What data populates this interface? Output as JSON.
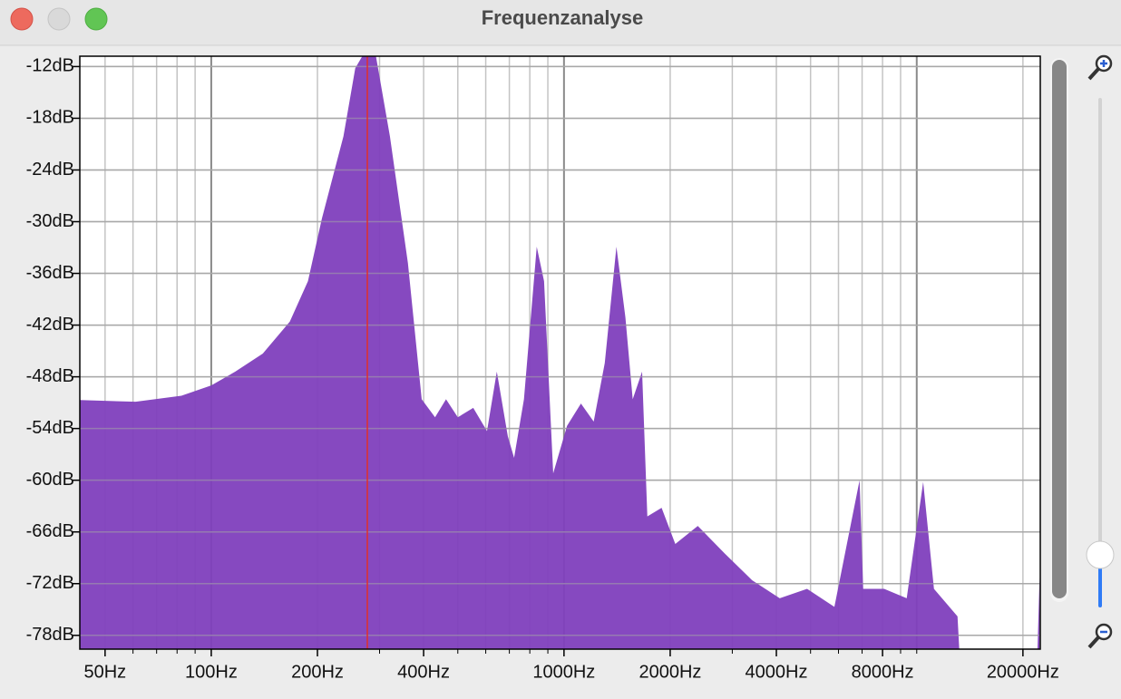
{
  "window": {
    "title": "Frequenzanalyse"
  },
  "chart_data": {
    "type": "area",
    "color": "#7f3fbd",
    "xscale": "log",
    "x": [
      42.4,
      61,
      82.3,
      100,
      117,
      140,
      167,
      188,
      206,
      237,
      256,
      268,
      293,
      321,
      361,
      395,
      431,
      463,
      500,
      553,
      605,
      645,
      693,
      722,
      770,
      837,
      878,
      932,
      1020,
      1117,
      1214,
      1305,
      1408,
      1493,
      1566,
      1665,
      1723,
      1891,
      2068,
      2395,
      2855,
      3414,
      4089,
      4888,
      5842,
      6886,
      7050,
      8083,
      9367,
      10430,
      11190,
      13050,
      13200,
      22000,
      22300
    ],
    "values": [
      -50.7,
      -50.9,
      -50.2,
      -49,
      -47.4,
      -45.3,
      -41.6,
      -36.9,
      -29.6,
      -20.1,
      -12.2,
      -10.8,
      -10.8,
      -20.1,
      -34.8,
      -50.6,
      -52.7,
      -50.6,
      -52.7,
      -51.6,
      -54.3,
      -47.4,
      -54.9,
      -57.4,
      -50.6,
      -32.9,
      -36.9,
      -59.2,
      -53.7,
      -51.1,
      -53.2,
      -46.4,
      -32.9,
      -41.1,
      -50.6,
      -47.4,
      -64.2,
      -63.2,
      -67.4,
      -65.3,
      -68.5,
      -71.6,
      -73.7,
      -72.6,
      -74.7,
      -60,
      -72.6,
      -72.6,
      -73.7,
      -60.2,
      -72.6,
      -75.8,
      -79.6,
      -79.6,
      -71.2
    ],
    "cursor": 277,
    "xlim": [
      42.4,
      22400
    ],
    "ylim": [
      -79.6,
      -10.8
    ],
    "xticks": [
      {
        "value": 50,
        "label": "50Hz"
      },
      {
        "value": 100,
        "label": "100Hz"
      },
      {
        "value": 200,
        "label": "200Hz"
      },
      {
        "value": 400,
        "label": "400Hz"
      },
      {
        "value": 1000,
        "label": "1000Hz"
      },
      {
        "value": 2000,
        "label": "2000Hz"
      },
      {
        "value": 4000,
        "label": "4000Hz"
      },
      {
        "value": 8000,
        "label": "8000Hz"
      },
      {
        "value": 20000,
        "label": "20000Hz"
      }
    ],
    "xminor": [
      60,
      70,
      80,
      90,
      300,
      500,
      600,
      700,
      800,
      900,
      3000,
      5000,
      6000,
      7000,
      9000,
      10000
    ],
    "yticks": [
      {
        "value": -12,
        "label": "-12dB"
      },
      {
        "value": -18,
        "label": "-18dB"
      },
      {
        "value": -24,
        "label": "-24dB"
      },
      {
        "value": -30,
        "label": "-30dB"
      },
      {
        "value": -36,
        "label": "-36dB"
      },
      {
        "value": -42,
        "label": "-42dB"
      },
      {
        "value": -48,
        "label": "-48dB"
      },
      {
        "value": -54,
        "label": "-54dB"
      },
      {
        "value": -60,
        "label": "-60dB"
      },
      {
        "value": -66,
        "label": "-66dB"
      },
      {
        "value": -72,
        "label": "-72dB"
      },
      {
        "value": -78,
        "label": "-78dB"
      }
    ],
    "grid": true
  }
}
